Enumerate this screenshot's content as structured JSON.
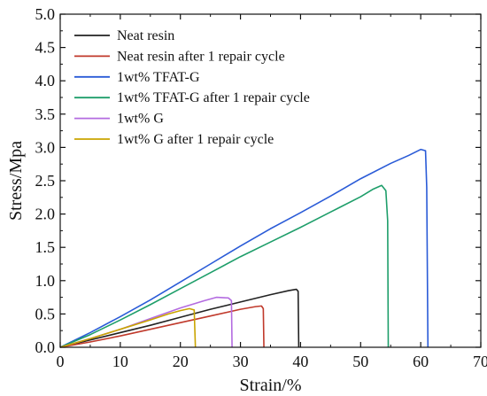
{
  "chart_data": {
    "type": "line",
    "xlabel": "Strain/%",
    "ylabel": "Stress/Mpa",
    "xlim": [
      0,
      70
    ],
    "ylim": [
      0,
      5.0
    ],
    "xticks": [
      "0",
      "10",
      "20",
      "30",
      "40",
      "50",
      "60",
      "70"
    ],
    "yticks": [
      "0.0",
      "0.5",
      "1.0",
      "1.5",
      "2.0",
      "2.5",
      "3.0",
      "3.5",
      "4.0",
      "4.5",
      "5.0"
    ],
    "grid": false,
    "legend_position": "top-left",
    "series": [
      {
        "name": "Neat resin",
        "color": "#222222",
        "points": [
          [
            0,
            0
          ],
          [
            5,
            0.11
          ],
          [
            10,
            0.22
          ],
          [
            15,
            0.33
          ],
          [
            20,
            0.45
          ],
          [
            25,
            0.57
          ],
          [
            30,
            0.68
          ],
          [
            35,
            0.79
          ],
          [
            38,
            0.85
          ],
          [
            39.3,
            0.87
          ],
          [
            39.6,
            0.84
          ],
          [
            39.7,
            0
          ]
        ]
      },
      {
        "name": "Neat resin after 1 repair cycle",
        "color": "#c0392b",
        "points": [
          [
            0,
            0
          ],
          [
            5,
            0.08
          ],
          [
            10,
            0.17
          ],
          [
            15,
            0.27
          ],
          [
            20,
            0.37
          ],
          [
            25,
            0.47
          ],
          [
            30,
            0.57
          ],
          [
            32.5,
            0.61
          ],
          [
            33.5,
            0.62
          ],
          [
            33.8,
            0.58
          ],
          [
            33.9,
            0
          ]
        ]
      },
      {
        "name": "1wt% TFAT-G",
        "color": "#2a5bd7",
        "points": [
          [
            0,
            0
          ],
          [
            5,
            0.22
          ],
          [
            10,
            0.46
          ],
          [
            15,
            0.71
          ],
          [
            20,
            0.98
          ],
          [
            25,
            1.25
          ],
          [
            30,
            1.52
          ],
          [
            35,
            1.78
          ],
          [
            40,
            2.02
          ],
          [
            45,
            2.27
          ],
          [
            50,
            2.53
          ],
          [
            55,
            2.76
          ],
          [
            58,
            2.88
          ],
          [
            60,
            2.97
          ],
          [
            60.8,
            2.95
          ],
          [
            61.0,
            2.4
          ],
          [
            61.2,
            0
          ]
        ]
      },
      {
        "name": "1wt% TFAT-G after 1 repair cycle",
        "color": "#1e9e6a",
        "points": [
          [
            0,
            0
          ],
          [
            5,
            0.19
          ],
          [
            10,
            0.41
          ],
          [
            15,
            0.64
          ],
          [
            20,
            0.88
          ],
          [
            25,
            1.12
          ],
          [
            30,
            1.36
          ],
          [
            35,
            1.58
          ],
          [
            40,
            1.8
          ],
          [
            45,
            2.03
          ],
          [
            50,
            2.26
          ],
          [
            52,
            2.37
          ],
          [
            53.5,
            2.43
          ],
          [
            54.2,
            2.35
          ],
          [
            54.5,
            1.9
          ],
          [
            54.6,
            0
          ]
        ]
      },
      {
        "name": "1wt% G",
        "color": "#b36be0",
        "points": [
          [
            0,
            0
          ],
          [
            5,
            0.13
          ],
          [
            10,
            0.27
          ],
          [
            15,
            0.43
          ],
          [
            20,
            0.59
          ],
          [
            24,
            0.7
          ],
          [
            26,
            0.75
          ],
          [
            28,
            0.74
          ],
          [
            28.5,
            0.7
          ],
          [
            28.6,
            0
          ]
        ]
      },
      {
        "name": "1wt% G after 1 repair cycle",
        "color": "#c9a400",
        "points": [
          [
            0,
            0
          ],
          [
            5,
            0.13
          ],
          [
            10,
            0.27
          ],
          [
            15,
            0.41
          ],
          [
            18,
            0.5
          ],
          [
            20,
            0.55
          ],
          [
            21.5,
            0.58
          ],
          [
            22.3,
            0.56
          ],
          [
            22.5,
            0
          ]
        ]
      }
    ]
  }
}
